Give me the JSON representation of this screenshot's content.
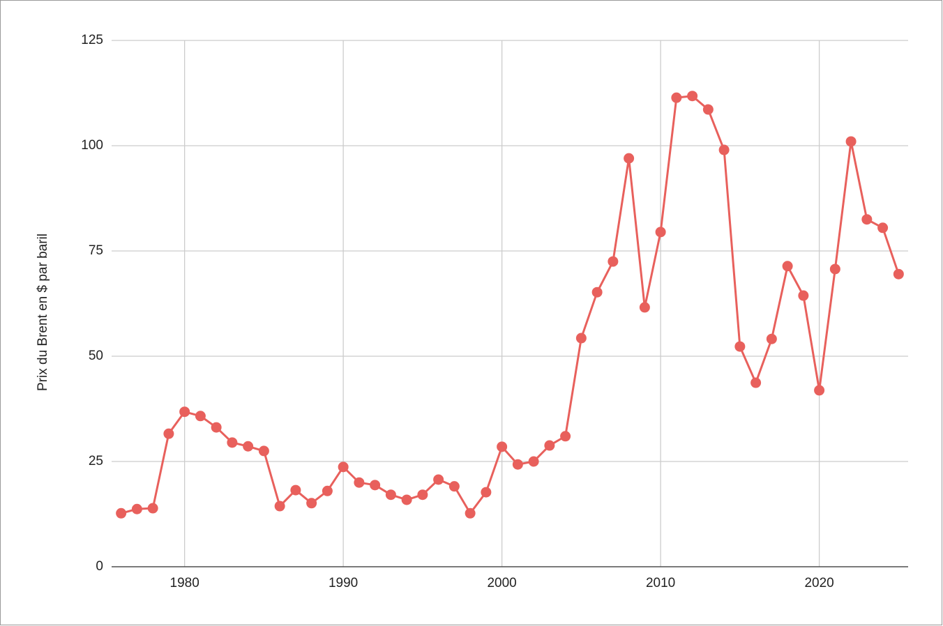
{
  "chart_data": {
    "type": "line",
    "y_label": "Prix du Brent en $ par baril",
    "x": [
      1976,
      1977,
      1978,
      1979,
      1980,
      1981,
      1982,
      1983,
      1984,
      1985,
      1986,
      1987,
      1988,
      1989,
      1990,
      1991,
      1992,
      1993,
      1994,
      1995,
      1996,
      1997,
      1998,
      1999,
      2000,
      2001,
      2002,
      2003,
      2004,
      2005,
      2006,
      2007,
      2008,
      2009,
      2010,
      2011,
      2012,
      2013,
      2014,
      2015,
      2016,
      2017,
      2018,
      2019,
      2020,
      2021,
      2022,
      2023,
      2024,
      2025
    ],
    "series": [
      {
        "color": "#e8605c",
        "values": [
          12.7,
          13.7,
          13.9,
          31.6,
          36.8,
          35.8,
          33.1,
          29.5,
          28.6,
          27.5,
          14.4,
          18.2,
          15.1,
          18.0,
          23.7,
          20.0,
          19.4,
          17.1,
          15.9,
          17.1,
          20.7,
          19.1,
          12.7,
          17.7,
          28.5,
          24.3,
          25.0,
          28.8,
          31.0,
          54.3,
          65.2,
          72.5,
          97.0,
          61.6,
          79.5,
          111.4,
          111.8,
          108.6,
          99.0,
          52.3,
          43.7,
          54.1,
          71.4,
          64.4,
          41.9,
          70.7,
          101.0,
          82.5,
          80.5,
          69.5
        ]
      }
    ],
    "xlim": [
      1975.4,
      2025.6
    ],
    "xticks": [
      1980,
      1990,
      2000,
      2010,
      2020
    ],
    "ylim": [
      0,
      125
    ],
    "yticks": [
      0,
      25,
      50,
      75,
      100,
      125
    ],
    "grid": true
  }
}
